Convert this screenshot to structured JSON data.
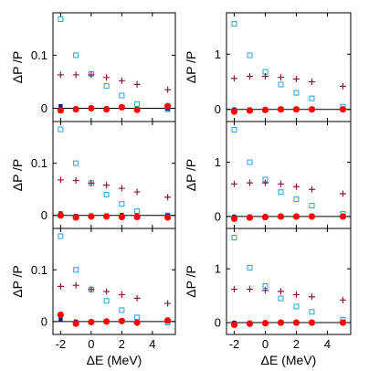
{
  "colors": {
    "red_circle": "#ff0000",
    "navy_square": "#0a1a8a",
    "cyan_square": "#2aa0dc",
    "maroon_plus": "#8a1a44"
  },
  "chart_data": [
    {
      "type": "scatter",
      "panel": "left-top",
      "ylabel": "ΔP /P",
      "xlabel": "",
      "xlim": [
        -2.5,
        5.5
      ],
      "ylim": [
        -0.025,
        0.18
      ],
      "yticks": [
        0,
        0.1
      ],
      "ytick_labels": [
        "0",
        "0.1"
      ],
      "xticks": [
        -2,
        0,
        2,
        4
      ],
      "xtick_labels": [],
      "series": [
        {
          "marker": "cyan-open-square",
          "x": [
            -2,
            -1,
            0,
            1,
            2,
            3,
            5
          ],
          "y": [
            0.168,
            0.1,
            0.065,
            0.042,
            0.024,
            0.008,
            -0.002
          ]
        },
        {
          "marker": "maroon-plus",
          "x": [
            -2,
            -1,
            0,
            1,
            2,
            3,
            5
          ],
          "y": [
            0.063,
            0.063,
            0.063,
            0.058,
            0.052,
            0.045,
            0.035
          ]
        },
        {
          "marker": "navy-filled-square",
          "x": [
            -2,
            -1,
            0,
            1,
            2,
            3,
            5
          ],
          "y": [
            0.004,
            0.0,
            -0.001,
            0.0,
            0.001,
            -0.001,
            -0.001
          ]
        },
        {
          "marker": "red-filled-circle",
          "x": [
            -2,
            -1,
            0,
            1,
            2,
            3,
            5
          ],
          "y": [
            -0.004,
            -0.002,
            0.0,
            -0.002,
            0.002,
            -0.003,
            0.004
          ]
        }
      ]
    },
    {
      "type": "scatter",
      "panel": "right-top",
      "ylabel": "ΔP /P",
      "xlabel": "",
      "xlim": [
        -2.5,
        5.5
      ],
      "ylim": [
        -0.22,
        1.75
      ],
      "yticks": [
        0,
        1
      ],
      "ytick_labels": [
        "0",
        "1"
      ],
      "xticks": [
        -2,
        0,
        2,
        4
      ],
      "xtick_labels": [],
      "series": [
        {
          "marker": "cyan-open-square",
          "x": [
            -2,
            -1,
            0,
            1,
            2,
            3,
            5
          ],
          "y": [
            1.55,
            0.98,
            0.68,
            0.45,
            0.3,
            0.2,
            0.05
          ]
        },
        {
          "marker": "maroon-plus",
          "x": [
            -2,
            -1,
            0,
            1,
            2,
            3,
            5
          ],
          "y": [
            0.56,
            0.6,
            0.6,
            0.58,
            0.55,
            0.5,
            0.42
          ]
        },
        {
          "marker": "navy-filled-square",
          "x": [
            -2,
            -1,
            0,
            1,
            2,
            3,
            5
          ],
          "y": [
            0.0,
            0.0,
            0.0,
            0.0,
            0.0,
            0.0,
            0.0
          ]
        },
        {
          "marker": "red-filled-circle",
          "x": [
            -2,
            -1,
            0,
            1,
            2,
            3,
            5
          ],
          "y": [
            -0.04,
            -0.02,
            -0.01,
            0.0,
            0.0,
            0.0,
            0.0
          ]
        }
      ]
    },
    {
      "type": "scatter",
      "panel": "left-middle",
      "ylabel": "ΔP /P",
      "xlabel": "",
      "xlim": [
        -2.5,
        5.5
      ],
      "ylim": [
        -0.025,
        0.18
      ],
      "yticks": [
        0,
        0.1
      ],
      "ytick_labels": [
        "0",
        "0.1"
      ],
      "xticks": [
        -2,
        0,
        2,
        4
      ],
      "xtick_labels": [],
      "series": [
        {
          "marker": "cyan-open-square",
          "x": [
            -2,
            -1,
            0,
            1,
            2,
            3,
            5
          ],
          "y": [
            0.165,
            0.1,
            0.062,
            0.04,
            0.022,
            0.008,
            0.0
          ]
        },
        {
          "marker": "maroon-plus",
          "x": [
            -2,
            -1,
            0,
            1,
            2,
            3,
            5
          ],
          "y": [
            0.068,
            0.067,
            0.062,
            0.058,
            0.052,
            0.045,
            0.035
          ]
        },
        {
          "marker": "navy-filled-square",
          "x": [
            -2,
            -1,
            0,
            1,
            2,
            3,
            5
          ],
          "y": [
            0.004,
            -0.001,
            0.0,
            0.0,
            0.001,
            0.0,
            0.0
          ]
        },
        {
          "marker": "red-filled-circle",
          "x": [
            -2,
            -1,
            0,
            1,
            2,
            3,
            5
          ],
          "y": [
            0.0,
            -0.004,
            -0.002,
            -0.002,
            -0.003,
            -0.003,
            -0.004
          ]
        }
      ]
    },
    {
      "type": "scatter",
      "panel": "right-middle",
      "ylabel": "ΔP /P",
      "xlabel": "",
      "xlim": [
        -2.5,
        5.5
      ],
      "ylim": [
        -0.22,
        1.75
      ],
      "yticks": [
        0,
        1
      ],
      "ytick_labels": [
        "0",
        "1"
      ],
      "xticks": [
        -2,
        0,
        2,
        4
      ],
      "xtick_labels": [],
      "series": [
        {
          "marker": "cyan-open-square",
          "x": [
            -2,
            -1,
            0,
            1,
            2,
            3,
            5
          ],
          "y": [
            1.6,
            1.0,
            0.68,
            0.45,
            0.32,
            0.2,
            0.05
          ]
        },
        {
          "marker": "maroon-plus",
          "x": [
            -2,
            -1,
            0,
            1,
            2,
            3,
            5
          ],
          "y": [
            0.6,
            0.62,
            0.62,
            0.6,
            0.55,
            0.5,
            0.42
          ]
        },
        {
          "marker": "navy-filled-square",
          "x": [
            -2,
            -1,
            0,
            1,
            2,
            3,
            5
          ],
          "y": [
            0.0,
            0.0,
            0.0,
            0.0,
            0.0,
            0.0,
            0.0
          ]
        },
        {
          "marker": "red-filled-circle",
          "x": [
            -2,
            -1,
            0,
            1,
            2,
            3,
            5
          ],
          "y": [
            -0.04,
            -0.02,
            -0.01,
            0.0,
            0.0,
            0.0,
            0.0
          ]
        }
      ]
    },
    {
      "type": "scatter",
      "panel": "left-bottom",
      "ylabel": "ΔP /P",
      "xlabel": "ΔE (MeV)",
      "xlim": [
        -2.5,
        5.5
      ],
      "ylim": [
        -0.025,
        0.18
      ],
      "yticks": [
        0,
        0.1
      ],
      "ytick_labels": [
        "0",
        "0.1"
      ],
      "xticks": [
        -2,
        0,
        2,
        4
      ],
      "xtick_labels": [
        "-2",
        "0",
        "2",
        "4"
      ],
      "series": [
        {
          "marker": "cyan-open-square",
          "x": [
            -2,
            -1,
            0,
            1,
            2,
            3,
            5
          ],
          "y": [
            0.165,
            0.1,
            0.062,
            0.04,
            0.022,
            0.008,
            -0.002
          ]
        },
        {
          "marker": "maroon-plus",
          "x": [
            -2,
            -1,
            0,
            1,
            2,
            3,
            5
          ],
          "y": [
            0.068,
            0.07,
            0.062,
            0.058,
            0.052,
            0.045,
            0.035
          ]
        },
        {
          "marker": "navy-filled-square",
          "x": [
            -2,
            -1,
            0,
            1,
            2,
            3,
            5
          ],
          "y": [
            0.004,
            0.0,
            -0.001,
            0.0,
            0.001,
            0.0,
            0.0
          ]
        },
        {
          "marker": "red-filled-circle",
          "x": [
            -2,
            -1,
            0,
            1,
            2,
            3,
            5
          ],
          "y": [
            0.013,
            -0.004,
            -0.001,
            0.0,
            0.001,
            -0.002,
            0.002
          ]
        }
      ]
    },
    {
      "type": "scatter",
      "panel": "right-bottom",
      "ylabel": "ΔP /P",
      "xlabel": "ΔE (MeV)",
      "xlim": [
        -2.5,
        5.5
      ],
      "ylim": [
        -0.22,
        1.75
      ],
      "yticks": [
        0,
        1
      ],
      "ytick_labels": [
        "0",
        "1"
      ],
      "xticks": [
        -2,
        0,
        2,
        4
      ],
      "xtick_labels": [
        "-2",
        "0",
        "2",
        "4"
      ],
      "series": [
        {
          "marker": "cyan-open-square",
          "x": [
            -2,
            -1,
            0,
            1,
            2,
            3,
            5
          ],
          "y": [
            1.58,
            1.02,
            0.68,
            0.45,
            0.3,
            0.2,
            0.05
          ]
        },
        {
          "marker": "maroon-plus",
          "x": [
            -2,
            -1,
            0,
            1,
            2,
            3,
            5
          ],
          "y": [
            0.62,
            0.62,
            0.6,
            0.58,
            0.52,
            0.48,
            0.42
          ]
        },
        {
          "marker": "navy-filled-square",
          "x": [
            -2,
            -1,
            0,
            1,
            2,
            3,
            5
          ],
          "y": [
            0.0,
            0.0,
            0.0,
            0.0,
            0.0,
            0.0,
            0.0
          ]
        },
        {
          "marker": "red-filled-circle",
          "x": [
            -2,
            -1,
            0,
            1,
            2,
            3,
            5
          ],
          "y": [
            -0.04,
            -0.02,
            -0.01,
            0.0,
            0.0,
            0.0,
            0.0
          ]
        }
      ]
    }
  ]
}
